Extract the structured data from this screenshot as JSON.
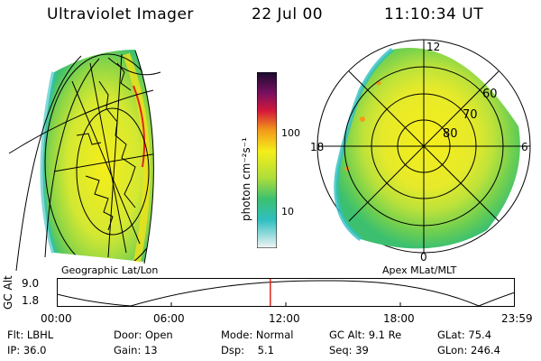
{
  "header": {
    "title": "Ultraviolet Imager",
    "date": "22 Jul 00",
    "time": "11:10:34 UT"
  },
  "panels": {
    "left_label": "Geographic Lat/Lon",
    "right_label": "Apex MLat/MLT",
    "colorbar_unit": "photon cm⁻²s⁻¹",
    "colorbar_ticks": [
      "100",
      "10"
    ],
    "polar_lat_labels": [
      "60",
      "70",
      "80"
    ],
    "polar_mlt_labels": [
      "12",
      "18",
      "6",
      "0"
    ]
  },
  "timeline": {
    "ylabel": "GC Alt",
    "y_ticks": [
      "9.0",
      "1.8"
    ],
    "x_ticks": [
      "00:00",
      "06:00",
      "12:00",
      "18:00",
      "23:59"
    ],
    "current_time_fraction": 0.4661
  },
  "footer": {
    "row1": [
      "Flt: LBHL",
      "Door: Open",
      "Mode: Normal",
      "GC Alt: 9.1 Re",
      "GLat: 75.4"
    ],
    "row2": [
      "IP: 36.0",
      "Gain: 13",
      "Dsp:    5.1",
      "Seq: 39",
      "GLon: 246.4"
    ]
  },
  "colors": {
    "marker": "#e0261c",
    "aurora_bright": "#f5ee1a",
    "aurora_mid": "#aede3a",
    "aurora_low": "#3cc070",
    "aurora_faint": "#2fbfc0"
  }
}
